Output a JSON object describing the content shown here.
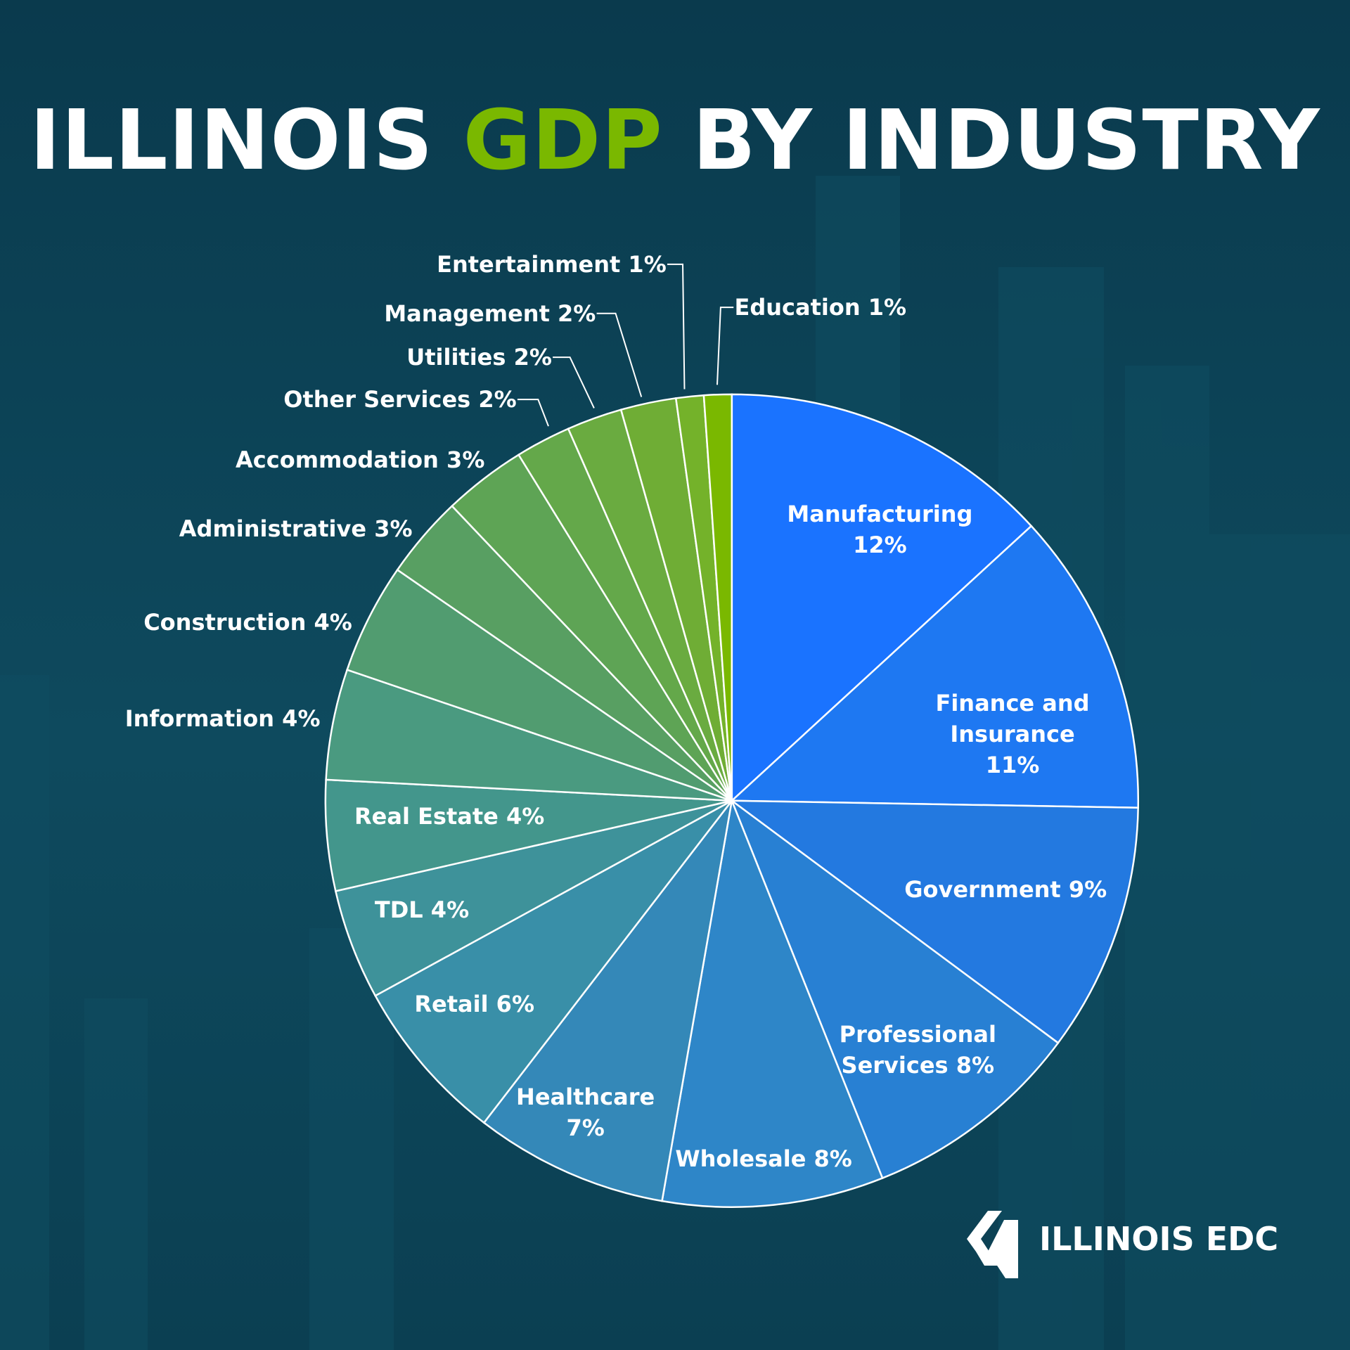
{
  "chart_data": {
    "type": "pie",
    "title": [
      {
        "text": "ILLINOIS",
        "color": "#ffffff"
      },
      {
        "text": "GDP",
        "color": "#7ab800"
      },
      {
        "text": "BY INDUSTRY",
        "color": "#ffffff"
      }
    ],
    "categories": [
      "Manufacturing",
      "Finance and Insurance",
      "Government",
      "Professional Services",
      "Wholesale",
      "Healthcare",
      "Retail",
      "TDL",
      "Real Estate",
      "Information",
      "Construction",
      "Administrative",
      "Accommodation",
      "Other Services",
      "Utilities",
      "Management",
      "Entertainment",
      "Education"
    ],
    "values": [
      12,
      11,
      9,
      8,
      8,
      7,
      6,
      4,
      4,
      4,
      4,
      3,
      3,
      2,
      2,
      2,
      1,
      1
    ],
    "value_labels": [
      "12%",
      "11%",
      "9%",
      "8%",
      "8%",
      "7%",
      "6%",
      "4%",
      "4%",
      "4%",
      "4%",
      "3%",
      "3%",
      "2%",
      "2%",
      "2%",
      "1%",
      "1%"
    ],
    "colors": [
      "#1a73ff",
      "#1e78f2",
      "#2379e0",
      "#2880d3",
      "#2e86c8",
      "#3488b8",
      "#398fa8",
      "#3e929a",
      "#43968c",
      "#4a9a80",
      "#519c70",
      "#589f62",
      "#5ea455",
      "#64a84a",
      "#6aab40",
      "#6fad35",
      "#74b22a",
      "#7ab800"
    ]
  },
  "logo": "ILLINOIS EDC"
}
